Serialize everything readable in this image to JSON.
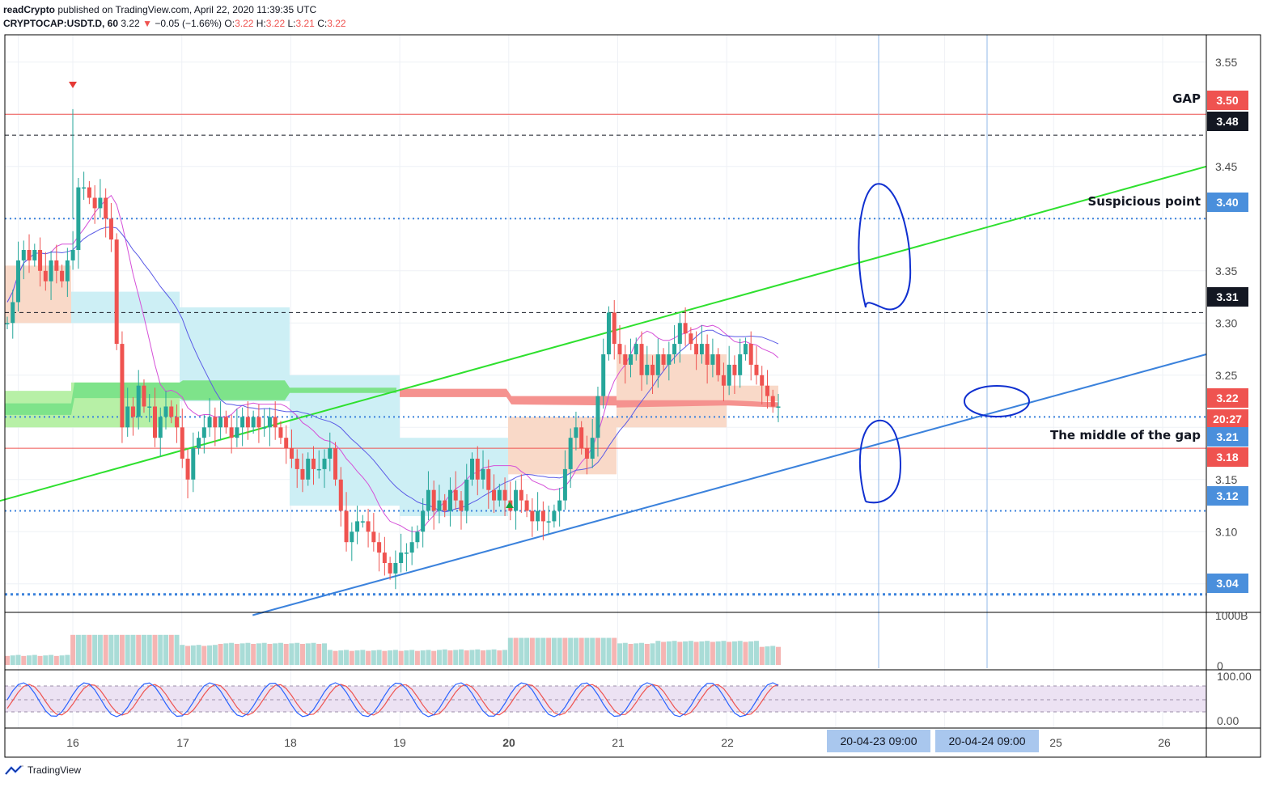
{
  "header": {
    "publisher": "readCrypto",
    "published_text": " published on TradingView.com, April 22, 2020 11:39:35 UTC",
    "symbol": "CRYPTOCAP:USDT.D, 60",
    "last": "3.22",
    "change_arrow": "▼",
    "change": "−0.05 (−1.66%)",
    "o_label": "O:",
    "o": "3.22",
    "h_label": "H:",
    "h": "3.22",
    "l_label": "L:",
    "l": "3.21",
    "c_label": "C:",
    "c": "3.22"
  },
  "footer": {
    "brand": "TradingView"
  },
  "colors": {
    "up": "#26a69a",
    "down": "#ef5350",
    "green_line": "#2ee02e",
    "blue_line": "#3b82dc",
    "ellipse": "#1030d0",
    "axis_badge_blue": "#4a8fdc",
    "axis_badge_red": "#ef5350"
  },
  "chart_data": {
    "type": "candlestick",
    "interval": "60",
    "y_range": [
      3.02,
      3.57
    ],
    "y_ticks": [
      "3.55",
      "3.45",
      "3.35",
      "3.30",
      "3.25",
      "3.15",
      "3.10",
      "3.05"
    ],
    "x_ticks": [
      {
        "label": "16",
        "bold": false
      },
      {
        "label": "17",
        "bold": false
      },
      {
        "label": "18",
        "bold": false
      },
      {
        "label": "19",
        "bold": false
      },
      {
        "label": "20",
        "bold": true
      },
      {
        "label": "21",
        "bold": false
      },
      {
        "label": "22",
        "bold": false
      },
      {
        "label": "25",
        "bold": false
      },
      {
        "label": "26",
        "bold": false
      }
    ],
    "date_labels": [
      "20-04-23   09:00",
      "20-04-24   09:00"
    ],
    "price_badges": [
      {
        "value": "3.50",
        "color": "#ef5350"
      },
      {
        "value": "3.48",
        "color": "#131722"
      },
      {
        "value": "3.40",
        "color": "#4a8fdc"
      },
      {
        "value": "3.31",
        "color": "#131722"
      },
      {
        "value": "3.22",
        "color": "#ef5350"
      },
      {
        "value": "20:27",
        "color": "#ef5350"
      },
      {
        "value": "3.21",
        "color": "#4a8fdc"
      },
      {
        "value": "3.18",
        "color": "#ef5350"
      },
      {
        "value": "3.12",
        "color": "#4a8fdc"
      },
      {
        "value": "3.04",
        "color": "#4a8fdc"
      }
    ],
    "annotations": [
      {
        "text": "GAP",
        "price": 3.5
      },
      {
        "text": "Suspicious point",
        "price": 3.4
      },
      {
        "text": "The middle of the gap",
        "price": 3.18
      }
    ],
    "horizontal_levels": [
      {
        "price": 3.5,
        "style": "solid",
        "color": "#ef5350"
      },
      {
        "price": 3.48,
        "style": "dashed",
        "color": "#131722"
      },
      {
        "price": 3.4,
        "style": "dotted",
        "color": "#3b82dc"
      },
      {
        "price": 3.31,
        "style": "dashed",
        "color": "#131722"
      },
      {
        "price": 3.21,
        "style": "dotted",
        "color": "#3b82dc"
      },
      {
        "price": 3.18,
        "style": "solid",
        "color": "#ef5350"
      },
      {
        "price": 3.12,
        "style": "dotted",
        "color": "#3b82dc"
      },
      {
        "price": 3.04,
        "style": "dotted-thick",
        "color": "#3b82dc"
      }
    ],
    "trendlines": [
      {
        "name": "green",
        "from": {
          "day": 15.0,
          "price": 3.12
        },
        "to": {
          "day": 26.4,
          "price": 3.45
        }
      },
      {
        "name": "blue",
        "from": {
          "day": 17.65,
          "price": 3.02
        },
        "to": {
          "day": 26.4,
          "price": 3.27
        }
      }
    ],
    "candles_close": [
      3.3,
      3.32,
      3.36,
      3.37,
      3.36,
      3.37,
      3.35,
      3.34,
      3.36,
      3.35,
      3.34,
      3.36,
      3.37,
      3.43,
      3.43,
      3.42,
      3.41,
      3.42,
      3.4,
      3.38,
      3.28,
      3.2,
      3.22,
      3.21,
      3.24,
      3.22,
      3.22,
      3.19,
      3.21,
      3.22,
      3.21,
      3.2,
      3.17,
      3.15,
      3.18,
      3.19,
      3.2,
      3.21,
      3.2,
      3.21,
      3.2,
      3.19,
      3.2,
      3.21,
      3.2,
      3.21,
      3.2,
      3.2,
      3.21,
      3.2,
      3.19,
      3.18,
      3.17,
      3.16,
      3.15,
      3.17,
      3.16,
      3.16,
      3.17,
      3.18,
      3.15,
      3.12,
      3.09,
      3.1,
      3.11,
      3.11,
      3.1,
      3.09,
      3.08,
      3.07,
      3.06,
      3.07,
      3.08,
      3.08,
      3.09,
      3.1,
      3.12,
      3.14,
      3.12,
      3.13,
      3.12,
      3.14,
      3.13,
      3.12,
      3.15,
      3.17,
      3.15,
      3.16,
      3.14,
      3.13,
      3.14,
      3.13,
      3.12,
      3.14,
      3.13,
      3.12,
      3.11,
      3.12,
      3.11,
      3.11,
      3.12,
      3.13,
      3.16,
      3.19,
      3.2,
      3.18,
      3.17,
      3.19,
      3.23,
      3.27,
      3.31,
      3.28,
      3.27,
      3.26,
      3.27,
      3.28,
      3.25,
      3.26,
      3.25,
      3.27,
      3.26,
      3.27,
      3.28,
      3.3,
      3.29,
      3.28,
      3.27,
      3.28,
      3.26,
      3.27,
      3.25,
      3.24,
      3.26,
      3.25,
      3.27,
      3.28,
      3.26,
      3.25,
      3.24,
      3.23,
      3.22,
      3.22
    ],
    "volume_scale_label": "1000B",
    "volume_zero_label": "0",
    "stoch_ticks": [
      "100.00",
      "0.00"
    ]
  }
}
